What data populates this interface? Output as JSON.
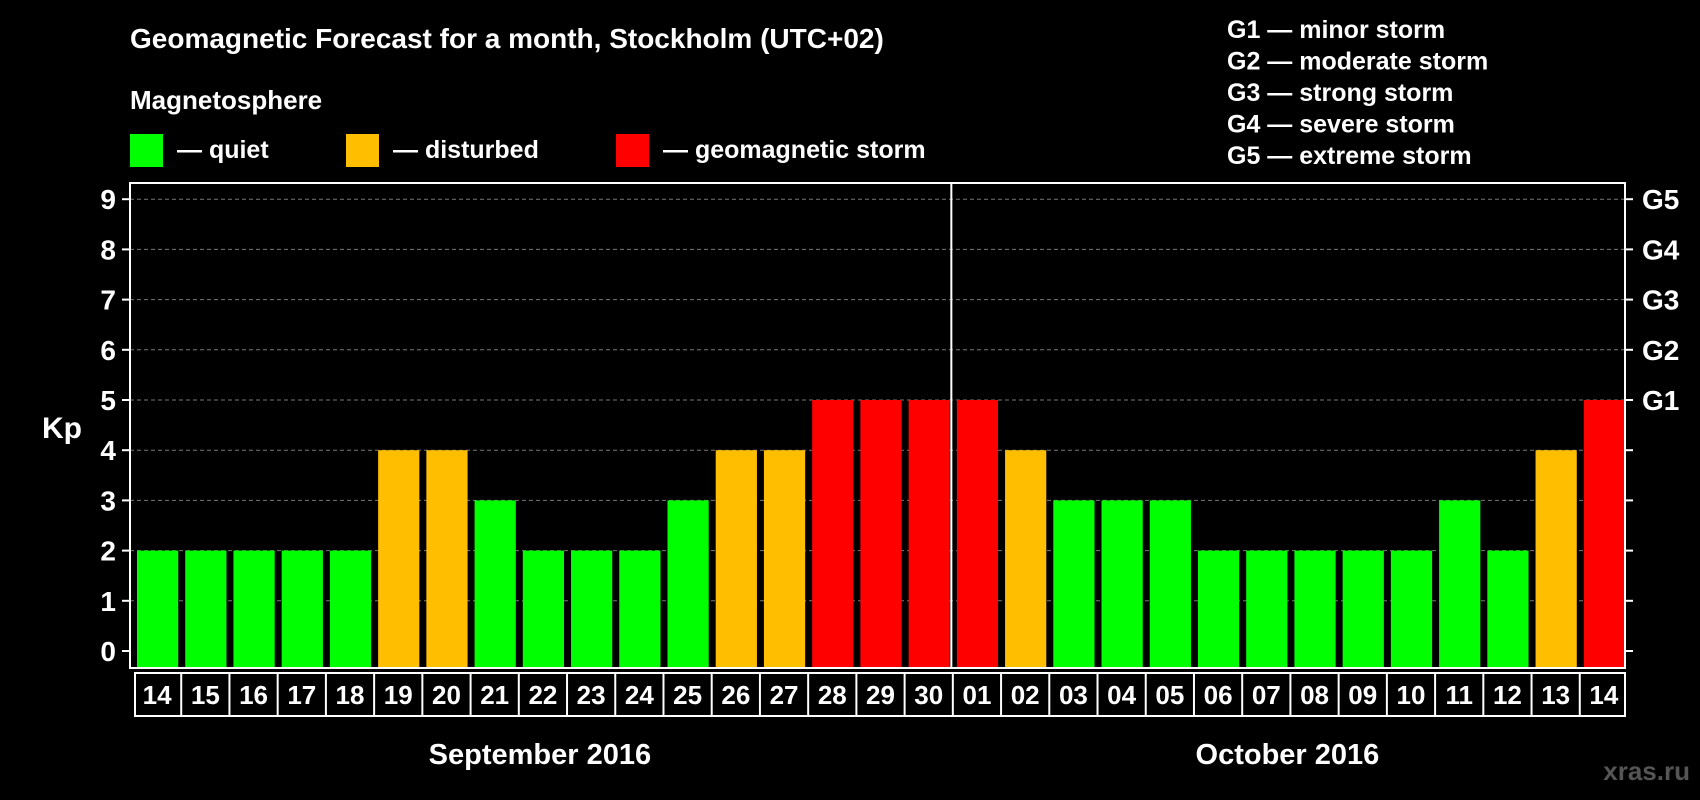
{
  "header": {
    "title": "Geomagnetic Forecast for a month, Stockholm (UTC+02)",
    "subtitle": "Magnetosphere"
  },
  "status_legend": [
    {
      "label": "— quiet",
      "color": "#00FF00"
    },
    {
      "label": "— disturbed",
      "color": "#FFBF00"
    },
    {
      "label": "— geomagnetic storm",
      "color": "#FF0000"
    }
  ],
  "storm_legend": [
    "G1 — minor storm",
    "G2 — moderate storm",
    "G3 — strong storm",
    "G4 — severe storm",
    "G5 — extreme storm"
  ],
  "watermark": "xras.ru",
  "chart_data": {
    "type": "bar",
    "ylabel": "Kp",
    "ylim": [
      0,
      9
    ],
    "yticks": [
      "0",
      "1",
      "2",
      "3",
      "4",
      "5",
      "6",
      "7",
      "8",
      "9"
    ],
    "right_axis_labels": [
      {
        "kp": 5,
        "label": "G1"
      },
      {
        "kp": 6,
        "label": "G2"
      },
      {
        "kp": 7,
        "label": "G3"
      },
      {
        "kp": 8,
        "label": "G4"
      },
      {
        "kp": 9,
        "label": "G5"
      }
    ],
    "grid": true,
    "months": [
      {
        "label": "September 2016",
        "start_index": 0,
        "count": 17
      },
      {
        "label": "October 2016",
        "start_index": 17,
        "count": 14
      }
    ],
    "categories": [
      "14",
      "15",
      "16",
      "17",
      "18",
      "19",
      "20",
      "21",
      "22",
      "23",
      "24",
      "25",
      "26",
      "27",
      "28",
      "29",
      "30",
      "01",
      "02",
      "03",
      "04",
      "05",
      "06",
      "07",
      "08",
      "09",
      "10",
      "11",
      "12",
      "13",
      "14"
    ],
    "values": [
      2,
      2,
      2,
      2,
      2,
      4,
      4,
      3,
      2,
      2,
      2,
      3,
      4,
      4,
      5,
      5,
      5,
      5,
      4,
      3,
      3,
      3,
      2,
      2,
      2,
      2,
      2,
      3,
      2,
      4,
      5
    ],
    "colors": {
      "quiet": "#00FF00",
      "disturbed": "#FFBF00",
      "storm": "#FF0000"
    }
  }
}
